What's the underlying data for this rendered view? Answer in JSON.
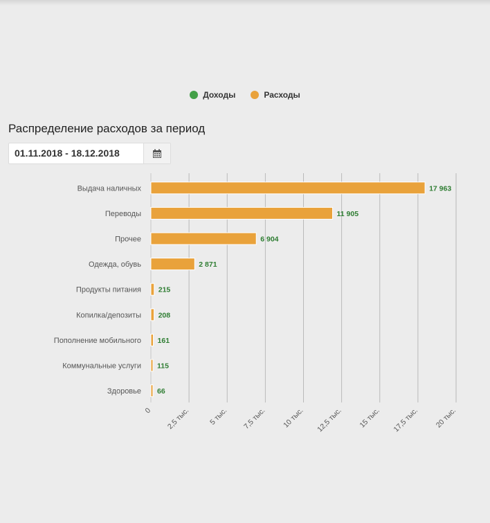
{
  "legend": {
    "items": [
      {
        "label": "Доходы",
        "color": "#43a047"
      },
      {
        "label": "Расходы",
        "color": "#e9a23b"
      }
    ]
  },
  "section": {
    "title": "Распределение расходов за период",
    "date_range": "01.11.2018 - 18.12.2018",
    "calendar_icon": "calendar-icon"
  },
  "chart_data": {
    "type": "bar",
    "orientation": "horizontal",
    "categories": [
      "Выдача наличных",
      "Переводы",
      "Прочее",
      "Одежда, обувь",
      "Продукты питания",
      "Копилка/депозиты",
      "Пополнение мобильного",
      "Коммунальные услуги",
      "Здоровье"
    ],
    "values": [
      17963,
      11905,
      6904,
      2871,
      215,
      208,
      161,
      115,
      66
    ],
    "data_labels": [
      "17 963",
      "11 905",
      "6 904",
      "2 871",
      "215",
      "208",
      "161",
      "115",
      "66"
    ],
    "xlim": [
      0,
      20000
    ],
    "x_ticks": [
      0,
      2500,
      5000,
      7500,
      10000,
      12500,
      15000,
      17500,
      20000
    ],
    "x_tick_labels": [
      "0",
      "2,5 тыс.",
      "5 тыс.",
      "7,5 тыс.",
      "10 тыс.",
      "12,5 тыс.",
      "15 тыс.",
      "17,5 тыс.",
      "20 тыс."
    ],
    "bar_color": "#e9a23b",
    "label_color": "#2e7d32",
    "grid": true
  }
}
